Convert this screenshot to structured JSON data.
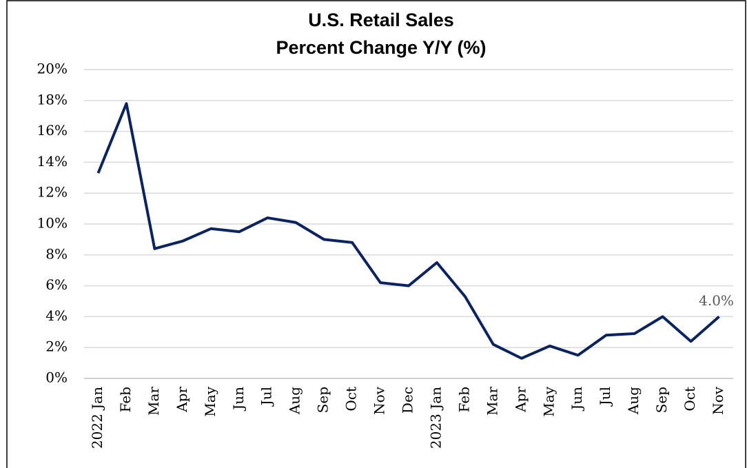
{
  "chart_data": {
    "type": "line",
    "title": "U.S. Retail Sales",
    "subtitle": "Percent Change Y/Y (%)",
    "categories": [
      "2022 Jan",
      "Feb",
      "Mar",
      "Apr",
      "May",
      "Jun",
      "Jul",
      "Aug",
      "Sep",
      "Oct",
      "Nov",
      "Dec",
      "2023 Jan",
      "Feb",
      "Mar",
      "Apr",
      "May",
      "Jun",
      "Jul",
      "Aug",
      "Sep",
      "Oct",
      "Nov"
    ],
    "series": [
      {
        "name": "Retail Sales Y/Y",
        "color": "#0b2461",
        "values": [
          13.3,
          17.8,
          8.4,
          8.9,
          9.7,
          9.5,
          10.4,
          10.1,
          9.0,
          8.8,
          6.2,
          6.0,
          7.5,
          5.3,
          2.2,
          1.3,
          2.1,
          1.5,
          2.8,
          2.9,
          4.0,
          2.4,
          4.0
        ],
        "value_labels": [
          null,
          null,
          null,
          null,
          null,
          null,
          null,
          null,
          null,
          null,
          null,
          null,
          null,
          null,
          null,
          null,
          null,
          null,
          null,
          null,
          null,
          null,
          "4.0%"
        ]
      }
    ],
    "ylim": [
      0,
      20
    ],
    "yticks": [
      {
        "value": 0,
        "label": "0%"
      },
      {
        "value": 2,
        "label": "2%"
      },
      {
        "value": 4,
        "label": "4%"
      },
      {
        "value": 6,
        "label": "6%"
      },
      {
        "value": 8,
        "label": "8%"
      },
      {
        "value": 10,
        "label": "10%"
      },
      {
        "value": 12,
        "label": "12%"
      },
      {
        "value": 14,
        "label": "14%"
      },
      {
        "value": 16,
        "label": "16%"
      },
      {
        "value": 18,
        "label": "18%"
      },
      {
        "value": 20,
        "label": "20%"
      }
    ],
    "grid": true
  }
}
